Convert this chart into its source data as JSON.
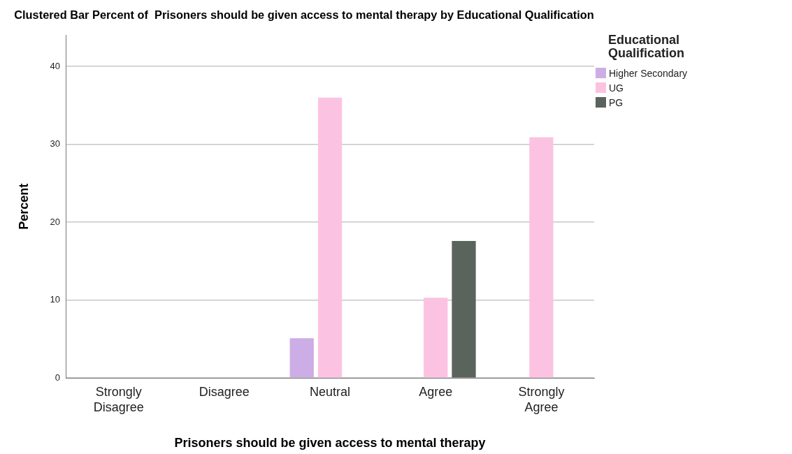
{
  "chart_data": {
    "type": "bar",
    "title": "Clustered Bar Percent of  Prisoners should be given access to mental therapy by Educational Qualification",
    "xlabel": "Prisoners should be given access to mental therapy",
    "ylabel": "Percent",
    "legend_title": "Educational Qualification",
    "categories": [
      "Strongly Disagree",
      "Disagree",
      "Neutral",
      "Agree",
      "Strongly Agree"
    ],
    "series": [
      {
        "name": "Higher Secondary",
        "color": "#cdade6",
        "values": [
          null,
          null,
          5.1,
          null,
          null
        ]
      },
      {
        "name": "UG",
        "color": "#fbc3e1",
        "values": [
          null,
          null,
          36.0,
          10.3,
          30.9
        ]
      },
      {
        "name": "PG",
        "color": "#5a635c",
        "values": [
          null,
          null,
          null,
          17.6,
          null
        ]
      }
    ],
    "ylim": [
      0,
      44
    ],
    "yticks": [
      0,
      10,
      20,
      30,
      40
    ],
    "grid": "y",
    "legend": "right"
  }
}
